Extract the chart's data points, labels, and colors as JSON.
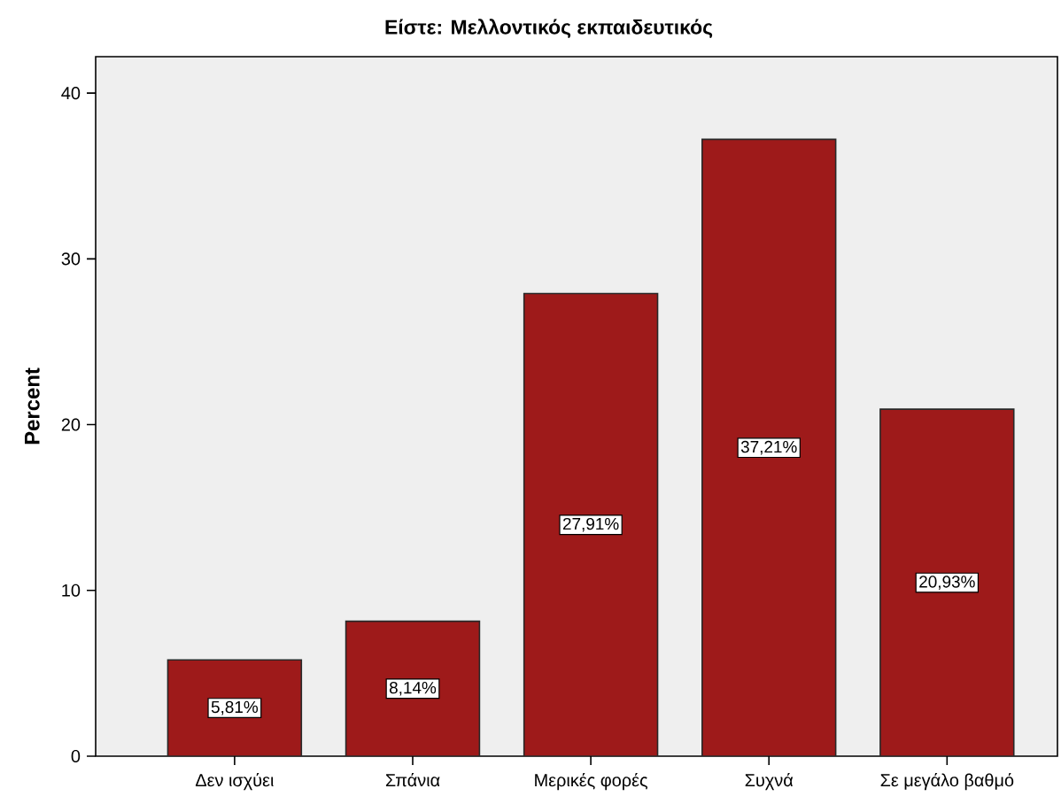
{
  "chart_data": {
    "type": "bar",
    "title": "Είστε: Μελλοντικός εκπαιδευτικός",
    "ylabel": "Percent",
    "categories": [
      "Δεν ισχύει",
      "Σπάνια",
      "Μερικές φορές",
      "Συχνά",
      "Σε μεγάλο βαθμό"
    ],
    "values": [
      5.81,
      8.14,
      27.91,
      37.21,
      20.93
    ],
    "value_labels": [
      "5,81%",
      "8,14%",
      "27,91%",
      "37,21%",
      "20,93%"
    ],
    "color": "#9e1a1a",
    "ylim": [
      0,
      42.2
    ],
    "yticks": [
      0,
      10,
      20,
      30,
      40
    ]
  }
}
